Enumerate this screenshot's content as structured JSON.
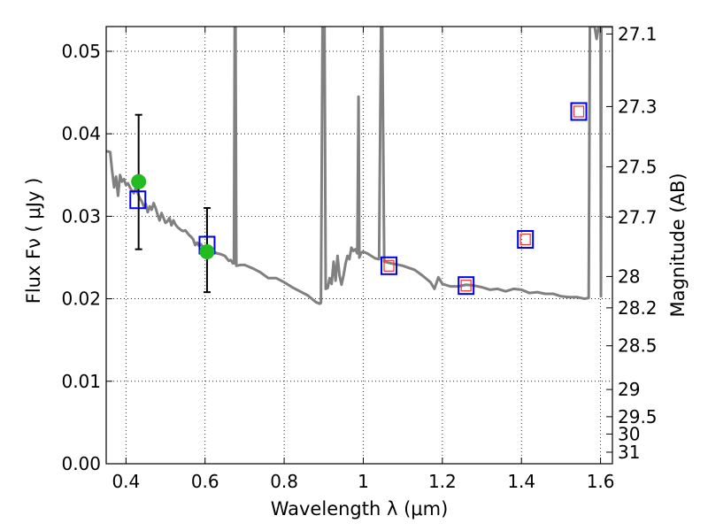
{
  "chart_data": {
    "type": "scatter",
    "xlabel": "Wavelength  λ (μm)",
    "ylabel": "Flux  Fν  ( μJy )",
    "ylabel_right": "Magnitude (AB)",
    "xlim": [
      0.35,
      1.63
    ],
    "ylim": [
      0.0,
      0.053
    ],
    "grid": true,
    "x_ticks": [
      0.4,
      0.6,
      0.8,
      1.0,
      1.2,
      1.4,
      1.6
    ],
    "x_tick_labels": [
      "0.4",
      "0.6",
      "0.8",
      "1",
      "1.2",
      "1.4",
      "1.6"
    ],
    "y_ticks": [
      0.0,
      0.01,
      0.02,
      0.03,
      0.04,
      0.05
    ],
    "y_tick_labels": [
      "0.00",
      "0.01",
      "0.02",
      "0.03",
      "0.04",
      "0.05"
    ],
    "right_ticks": [
      {
        "label": "27.1",
        "flux": 0.0521
      },
      {
        "label": "27.3",
        "flux": 0.0433
      },
      {
        "label": "27.5",
        "flux": 0.036
      },
      {
        "label": "27.7",
        "flux": 0.0299
      },
      {
        "label": "28",
        "flux": 0.0227
      },
      {
        "label": "28.2",
        "flux": 0.0189
      },
      {
        "label": "28.5",
        "flux": 0.0143
      },
      {
        "label": "29",
        "flux": 0.009
      },
      {
        "label": "29.5",
        "flux": 0.0057
      },
      {
        "label": "30",
        "flux": 0.0036
      },
      {
        "label": "31",
        "flux": 0.0014
      }
    ],
    "series": [
      {
        "kind": "line",
        "color": "#808080",
        "points": [
          [
            0.35,
            0.0379
          ],
          [
            0.36,
            0.0378
          ],
          [
            0.365,
            0.0355
          ],
          [
            0.37,
            0.0335
          ],
          [
            0.375,
            0.0348
          ],
          [
            0.38,
            0.0325
          ],
          [
            0.385,
            0.035
          ],
          [
            0.39,
            0.0342
          ],
          [
            0.395,
            0.0345
          ],
          [
            0.4,
            0.0338
          ],
          [
            0.405,
            0.034
          ],
          [
            0.41,
            0.0335
          ],
          [
            0.415,
            0.0331
          ],
          [
            0.42,
            0.0328
          ],
          [
            0.425,
            0.0335
          ],
          [
            0.43,
            0.0328
          ],
          [
            0.435,
            0.0322
          ],
          [
            0.44,
            0.0318
          ],
          [
            0.445,
            0.0312
          ],
          [
            0.45,
            0.0315
          ],
          [
            0.455,
            0.0305
          ],
          [
            0.46,
            0.0312
          ],
          [
            0.465,
            0.0308
          ],
          [
            0.47,
            0.0316
          ],
          [
            0.475,
            0.031
          ],
          [
            0.48,
            0.0302
          ],
          [
            0.485,
            0.0295
          ],
          [
            0.49,
            0.0304
          ],
          [
            0.495,
            0.0298
          ],
          [
            0.5,
            0.0292
          ],
          [
            0.505,
            0.0294
          ],
          [
            0.51,
            0.0298
          ],
          [
            0.515,
            0.0289
          ],
          [
            0.52,
            0.0295
          ],
          [
            0.525,
            0.029
          ],
          [
            0.53,
            0.0287
          ],
          [
            0.535,
            0.0285
          ],
          [
            0.54,
            0.0283
          ],
          [
            0.545,
            0.0282
          ],
          [
            0.55,
            0.0283
          ],
          [
            0.555,
            0.028
          ],
          [
            0.56,
            0.0277
          ],
          [
            0.565,
            0.0275
          ],
          [
            0.57,
            0.0272
          ],
          [
            0.575,
            0.0265
          ],
          [
            0.58,
            0.0268
          ],
          [
            0.585,
            0.0264
          ],
          [
            0.59,
            0.0266
          ],
          [
            0.595,
            0.0262
          ],
          [
            0.6,
            0.0258
          ],
          [
            0.61,
            0.0258
          ],
          [
            0.62,
            0.0258
          ],
          [
            0.63,
            0.0255
          ],
          [
            0.64,
            0.0254
          ],
          [
            0.65,
            0.0252
          ],
          [
            0.66,
            0.0246
          ],
          [
            0.665,
            0.0247
          ],
          [
            0.67,
            0.0243
          ],
          [
            0.673,
            0.0243
          ],
          [
            0.675,
            0.053
          ],
          [
            0.677,
            0.053
          ],
          [
            0.679,
            0.024
          ],
          [
            0.69,
            0.0241
          ],
          [
            0.7,
            0.0241
          ],
          [
            0.72,
            0.0237
          ],
          [
            0.74,
            0.0232
          ],
          [
            0.76,
            0.0225
          ],
          [
            0.78,
            0.0225
          ],
          [
            0.8,
            0.022
          ],
          [
            0.82,
            0.0214
          ],
          [
            0.84,
            0.0209
          ],
          [
            0.86,
            0.0204
          ],
          [
            0.88,
            0.0196
          ],
          [
            0.89,
            0.0194
          ],
          [
            0.893,
            0.0195
          ],
          [
            0.897,
            0.053
          ],
          [
            0.902,
            0.053
          ],
          [
            0.905,
            0.0212
          ],
          [
            0.91,
            0.0213
          ],
          [
            0.915,
            0.0225
          ],
          [
            0.92,
            0.0218
          ],
          [
            0.925,
            0.0245
          ],
          [
            0.93,
            0.0222
          ],
          [
            0.935,
            0.0252
          ],
          [
            0.94,
            0.0228
          ],
          [
            0.945,
            0.0217
          ],
          [
            0.95,
            0.0228
          ],
          [
            0.955,
            0.0242
          ],
          [
            0.96,
            0.0252
          ],
          [
            0.965,
            0.0248
          ],
          [
            0.97,
            0.0262
          ],
          [
            0.975,
            0.0258
          ],
          [
            0.98,
            0.026
          ],
          [
            0.985,
            0.0255
          ],
          [
            0.988,
            0.0445
          ],
          [
            0.99,
            0.025
          ],
          [
            0.995,
            0.0256
          ],
          [
            1.0,
            0.0257
          ],
          [
            1.01,
            0.0255
          ],
          [
            1.02,
            0.0252
          ],
          [
            1.03,
            0.0249
          ],
          [
            1.04,
            0.0248
          ],
          [
            1.045,
            0.053
          ],
          [
            1.048,
            0.053
          ],
          [
            1.053,
            0.0245
          ],
          [
            1.07,
            0.0243
          ],
          [
            1.1,
            0.024
          ],
          [
            1.13,
            0.0235
          ],
          [
            1.15,
            0.0228
          ],
          [
            1.17,
            0.022
          ],
          [
            1.18,
            0.0212
          ],
          [
            1.19,
            0.0226
          ],
          [
            1.2,
            0.0218
          ],
          [
            1.22,
            0.0215
          ],
          [
            1.24,
            0.0215
          ],
          [
            1.26,
            0.0217
          ],
          [
            1.28,
            0.0216
          ],
          [
            1.3,
            0.0214
          ],
          [
            1.32,
            0.0211
          ],
          [
            1.34,
            0.0212
          ],
          [
            1.36,
            0.0209
          ],
          [
            1.38,
            0.0212
          ],
          [
            1.4,
            0.0211
          ],
          [
            1.42,
            0.0207
          ],
          [
            1.44,
            0.0208
          ],
          [
            1.46,
            0.0206
          ],
          [
            1.48,
            0.0206
          ],
          [
            1.5,
            0.0203
          ],
          [
            1.52,
            0.0202
          ],
          [
            1.54,
            0.0202
          ],
          [
            1.56,
            0.02
          ],
          [
            1.57,
            0.0201
          ],
          [
            1.573,
            0.053
          ],
          [
            1.577,
            0.053
          ],
          [
            1.58,
            0.053
          ],
          [
            1.585,
            0.053
          ],
          [
            1.59,
            0.0515
          ],
          [
            1.595,
            0.053
          ],
          [
            1.6,
            0.053
          ],
          [
            1.601,
            0.0203
          ],
          [
            1.602,
            0.053
          ],
          [
            1.63,
            0.053
          ]
        ]
      },
      {
        "kind": "observed",
        "color": "#22bb22",
        "points": [
          {
            "x": 0.432,
            "y": 0.0342,
            "err_low": 0.026,
            "err_high": 0.0423
          },
          {
            "x": 0.605,
            "y": 0.0257,
            "err_low": 0.0208,
            "err_high": 0.031
          }
        ]
      },
      {
        "kind": "model_band_flux",
        "color": "#0000ee",
        "points": [
          [
            0.43,
            0.032
          ],
          [
            0.605,
            0.0265
          ],
          [
            1.065,
            0.024
          ],
          [
            1.26,
            0.0216
          ],
          [
            1.41,
            0.0272
          ],
          [
            1.545,
            0.0427
          ]
        ]
      },
      {
        "kind": "predicted",
        "color": "#ee3333",
        "points": [
          [
            1.065,
            0.024
          ],
          [
            1.26,
            0.0216
          ],
          [
            1.41,
            0.0272
          ],
          [
            1.545,
            0.0427
          ]
        ]
      }
    ]
  }
}
